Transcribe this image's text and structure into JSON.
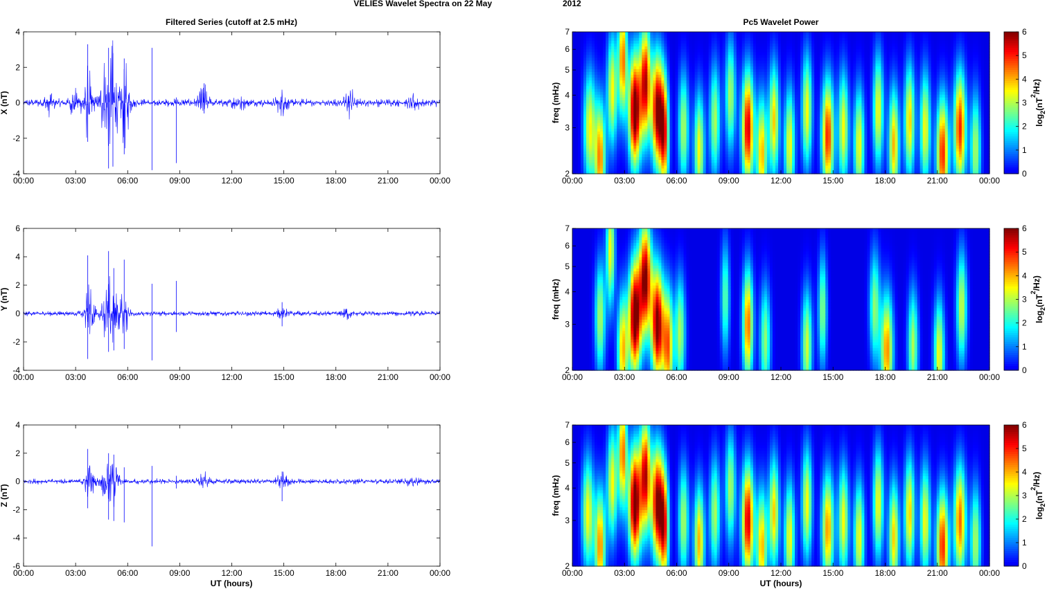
{
  "figure": {
    "title_main": "VELIES Wavelet Spectra on 22 May",
    "title_year": "2012",
    "left_title": "Filtered Series (cutoff at 2.5 mHz)",
    "right_title": "Pc5 Wavelet Power",
    "xlabel": "UT (hours)",
    "time_ticks": [
      "00:00",
      "03:00",
      "06:00",
      "09:00",
      "12:00",
      "15:00",
      "18:00",
      "21:00",
      "00:00"
    ],
    "freq_ylabel": "freq (mHz)",
    "freq_ticks": [
      "2",
      "3",
      "4",
      "5",
      "6",
      "7"
    ],
    "colorbar_label_prefix": "log",
    "colorbar_label_sub": "2",
    "colorbar_label_mid": "(nT",
    "colorbar_label_sup": "2",
    "colorbar_label_suffix": "/Hz)",
    "colorbar_ticks": [
      "0",
      "1",
      "2",
      "3",
      "4",
      "5",
      "6"
    ]
  },
  "chart_data": [
    {
      "type": "line",
      "component": "X",
      "ylabel": "X (nT)",
      "x_unit": "hours UT",
      "xlim": [
        0,
        24
      ],
      "ylim": [
        -4,
        4
      ],
      "yticks": [
        -4,
        -2,
        0,
        2,
        4
      ],
      "color": "#0000ff",
      "background_amplitude": 0.25,
      "bursts": [
        {
          "t": 1.5,
          "amp": 0.6
        },
        {
          "t": 2.9,
          "amp": 0.8
        },
        {
          "t": 3.7,
          "amp": 2.3
        },
        {
          "t": 4.7,
          "amp": 2.5
        },
        {
          "t": 5.1,
          "amp": 3.6
        },
        {
          "t": 5.8,
          "amp": 2.7
        },
        {
          "t": 10.4,
          "amp": 1.0
        },
        {
          "t": 12.4,
          "amp": 0.6
        },
        {
          "t": 14.9,
          "amp": 0.8
        },
        {
          "t": 18.8,
          "amp": 0.8
        },
        {
          "t": 22.5,
          "amp": 0.6
        }
      ],
      "spikes": [
        {
          "t": 3.7,
          "min": -2.2,
          "max": 3.3
        },
        {
          "t": 4.9,
          "min": -3.7,
          "max": 3.1
        },
        {
          "t": 5.15,
          "min": -3.6,
          "max": 2.8
        },
        {
          "t": 5.8,
          "min": -2.9,
          "max": 2.5
        },
        {
          "t": 7.4,
          "min": -3.8,
          "max": 3.1
        },
        {
          "t": 8.8,
          "min": -3.4,
          "max": 0.3
        },
        {
          "t": 10.4,
          "min": -0.6,
          "max": 1.1
        }
      ]
    },
    {
      "type": "line",
      "component": "Y",
      "ylabel": "Y (nT)",
      "x_unit": "hours UT",
      "xlim": [
        0,
        24
      ],
      "ylim": [
        -4,
        6
      ],
      "yticks": [
        -4,
        -2,
        0,
        2,
        4,
        6
      ],
      "color": "#0000ff",
      "background_amplitude": 0.2,
      "bursts": [
        {
          "t": 3.8,
          "amp": 2.2
        },
        {
          "t": 4.8,
          "amp": 2.2
        },
        {
          "t": 5.2,
          "amp": 2.3
        },
        {
          "t": 5.8,
          "amp": 1.6
        },
        {
          "t": 14.9,
          "amp": 0.4
        },
        {
          "t": 18.6,
          "amp": 0.4
        }
      ],
      "spikes": [
        {
          "t": 3.7,
          "min": -3.2,
          "max": 4.1
        },
        {
          "t": 4.9,
          "min": -2.7,
          "max": 4.4
        },
        {
          "t": 5.2,
          "min": -2.6,
          "max": 3.2
        },
        {
          "t": 5.8,
          "min": -2.5,
          "max": 3.8
        },
        {
          "t": 7.4,
          "min": -3.3,
          "max": 2.1
        },
        {
          "t": 8.8,
          "min": -1.3,
          "max": 2.3
        },
        {
          "t": 14.9,
          "min": -0.9,
          "max": 0.8
        }
      ]
    },
    {
      "type": "line",
      "component": "Z",
      "ylabel": "Z (nT)",
      "x_unit": "hours UT",
      "xlim": [
        0,
        24
      ],
      "ylim": [
        -6,
        4
      ],
      "yticks": [
        -6,
        -4,
        -2,
        0,
        2,
        4
      ],
      "color": "#0000ff",
      "background_amplitude": 0.22,
      "bursts": [
        {
          "t": 3.8,
          "amp": 1.5
        },
        {
          "t": 4.8,
          "amp": 1.6
        },
        {
          "t": 5.2,
          "amp": 1.8
        },
        {
          "t": 10.4,
          "amp": 0.6
        },
        {
          "t": 14.9,
          "amp": 0.6
        },
        {
          "t": 22.4,
          "amp": 0.4
        }
      ],
      "spikes": [
        {
          "t": 3.7,
          "min": -1.9,
          "max": 2.3
        },
        {
          "t": 4.9,
          "min": -2.7,
          "max": 2.0
        },
        {
          "t": 5.2,
          "min": -2.8,
          "max": 1.9
        },
        {
          "t": 5.8,
          "min": -2.9,
          "max": 1.0
        },
        {
          "t": 7.4,
          "min": -4.6,
          "max": 1.1
        },
        {
          "t": 8.8,
          "min": -0.5,
          "max": 0.4
        },
        {
          "t": 14.9,
          "min": -1.4,
          "max": 0.7
        }
      ]
    },
    {
      "type": "heatmap",
      "component": "X",
      "ylabel": "freq (mHz)",
      "x_unit": "hours UT",
      "xlim": [
        0,
        24
      ],
      "ylim": [
        2,
        7
      ],
      "yscale": "log",
      "zlim": [
        0,
        6
      ],
      "colormap": "jet",
      "cells_x": 150,
      "cells_y": 50,
      "blobs": [
        {
          "t": 1.0,
          "f": 3.0,
          "p": 3.5,
          "w": 0.35
        },
        {
          "t": 1.6,
          "f": 2.3,
          "p": 4.3,
          "w": 0.3
        },
        {
          "t": 2.3,
          "f": 4.2,
          "p": 3.5,
          "w": 0.3
        },
        {
          "t": 2.9,
          "f": 5.5,
          "p": 4.5,
          "w": 0.25
        },
        {
          "t": 3.6,
          "f": 3.5,
          "p": 6.5,
          "w": 0.35
        },
        {
          "t": 4.2,
          "f": 4.5,
          "p": 5.5,
          "w": 0.3
        },
        {
          "t": 4.9,
          "f": 3.5,
          "p": 6.0,
          "w": 0.35
        },
        {
          "t": 5.3,
          "f": 2.8,
          "p": 4.5,
          "w": 0.25
        },
        {
          "t": 6.4,
          "f": 3.0,
          "p": 3.0,
          "w": 0.3
        },
        {
          "t": 7.3,
          "f": 2.5,
          "p": 3.5,
          "w": 0.3
        },
        {
          "t": 8.2,
          "f": 3.2,
          "p": 3.0,
          "w": 0.3
        },
        {
          "t": 9.1,
          "f": 4.0,
          "p": 3.0,
          "w": 0.3
        },
        {
          "t": 10.1,
          "f": 3.0,
          "p": 5.5,
          "w": 0.35
        },
        {
          "t": 10.9,
          "f": 2.4,
          "p": 4.0,
          "w": 0.3
        },
        {
          "t": 11.6,
          "f": 3.2,
          "p": 3.8,
          "w": 0.3
        },
        {
          "t": 12.5,
          "f": 2.6,
          "p": 3.5,
          "w": 0.3
        },
        {
          "t": 13.5,
          "f": 3.5,
          "p": 3.5,
          "w": 0.3
        },
        {
          "t": 14.7,
          "f": 2.8,
          "p": 5.0,
          "w": 0.35
        },
        {
          "t": 15.6,
          "f": 3.0,
          "p": 3.5,
          "w": 0.3
        },
        {
          "t": 16.5,
          "f": 2.6,
          "p": 3.5,
          "w": 0.3
        },
        {
          "t": 17.6,
          "f": 3.5,
          "p": 3.5,
          "w": 0.3
        },
        {
          "t": 18.5,
          "f": 2.6,
          "p": 4.0,
          "w": 0.3
        },
        {
          "t": 19.4,
          "f": 3.2,
          "p": 3.8,
          "w": 0.3
        },
        {
          "t": 20.3,
          "f": 3.0,
          "p": 3.5,
          "w": 0.3
        },
        {
          "t": 21.3,
          "f": 2.4,
          "p": 5.0,
          "w": 0.35
        },
        {
          "t": 22.3,
          "f": 3.0,
          "p": 5.0,
          "w": 0.35
        },
        {
          "t": 23.2,
          "f": 2.5,
          "p": 3.0,
          "w": 0.3
        }
      ]
    },
    {
      "type": "heatmap",
      "component": "Y",
      "ylabel": "freq (mHz)",
      "x_unit": "hours UT",
      "xlim": [
        0,
        24
      ],
      "ylim": [
        2,
        7
      ],
      "yscale": "log",
      "zlim": [
        0,
        6
      ],
      "colormap": "jet",
      "cells_x": 150,
      "cells_y": 50,
      "blobs": [
        {
          "t": 1.6,
          "f": 3.2,
          "p": 3.0,
          "w": 0.3
        },
        {
          "t": 2.2,
          "f": 5.8,
          "p": 3.5,
          "w": 0.25
        },
        {
          "t": 2.9,
          "f": 2.4,
          "p": 4.0,
          "w": 0.3
        },
        {
          "t": 3.6,
          "f": 3.2,
          "p": 6.5,
          "w": 0.35
        },
        {
          "t": 4.2,
          "f": 4.5,
          "p": 6.0,
          "w": 0.35
        },
        {
          "t": 4.9,
          "f": 3.0,
          "p": 6.2,
          "w": 0.35
        },
        {
          "t": 5.5,
          "f": 2.5,
          "p": 4.5,
          "w": 0.3
        },
        {
          "t": 6.2,
          "f": 2.8,
          "p": 3.0,
          "w": 0.3
        },
        {
          "t": 8.8,
          "f": 3.8,
          "p": 2.5,
          "w": 0.25
        },
        {
          "t": 10.1,
          "f": 3.0,
          "p": 4.5,
          "w": 0.3
        },
        {
          "t": 11.1,
          "f": 2.6,
          "p": 2.8,
          "w": 0.3
        },
        {
          "t": 13.5,
          "f": 2.5,
          "p": 3.2,
          "w": 0.3
        },
        {
          "t": 14.4,
          "f": 3.4,
          "p": 2.8,
          "w": 0.25
        },
        {
          "t": 17.4,
          "f": 3.5,
          "p": 2.8,
          "w": 0.3
        },
        {
          "t": 18.1,
          "f": 2.4,
          "p": 4.3,
          "w": 0.35
        },
        {
          "t": 19.6,
          "f": 2.5,
          "p": 3.0,
          "w": 0.3
        },
        {
          "t": 21.1,
          "f": 2.3,
          "p": 3.5,
          "w": 0.3
        },
        {
          "t": 22.4,
          "f": 3.5,
          "p": 3.2,
          "w": 0.3
        }
      ]
    },
    {
      "type": "heatmap",
      "component": "Z",
      "ylabel": "freq (mHz)",
      "x_unit": "hours UT",
      "xlim": [
        0,
        24
      ],
      "ylim": [
        2,
        7
      ],
      "yscale": "log",
      "zlim": [
        0,
        6
      ],
      "colormap": "jet",
      "cells_x": 150,
      "cells_y": 50,
      "blobs": [
        {
          "t": 0.9,
          "f": 3.2,
          "p": 3.5,
          "w": 0.35
        },
        {
          "t": 1.6,
          "f": 2.4,
          "p": 4.3,
          "w": 0.3
        },
        {
          "t": 2.3,
          "f": 4.2,
          "p": 3.5,
          "w": 0.3
        },
        {
          "t": 2.9,
          "f": 5.5,
          "p": 4.5,
          "w": 0.25
        },
        {
          "t": 3.6,
          "f": 3.5,
          "p": 6.5,
          "w": 0.35
        },
        {
          "t": 4.2,
          "f": 4.5,
          "p": 5.5,
          "w": 0.3
        },
        {
          "t": 4.9,
          "f": 3.5,
          "p": 6.0,
          "w": 0.35
        },
        {
          "t": 5.3,
          "f": 2.8,
          "p": 4.5,
          "w": 0.25
        },
        {
          "t": 6.4,
          "f": 3.0,
          "p": 3.0,
          "w": 0.3
        },
        {
          "t": 7.3,
          "f": 2.5,
          "p": 4.0,
          "w": 0.3
        },
        {
          "t": 8.2,
          "f": 3.2,
          "p": 3.0,
          "w": 0.3
        },
        {
          "t": 9.1,
          "f": 4.0,
          "p": 3.0,
          "w": 0.3
        },
        {
          "t": 10.1,
          "f": 3.0,
          "p": 5.5,
          "w": 0.35
        },
        {
          "t": 10.9,
          "f": 2.4,
          "p": 4.0,
          "w": 0.3
        },
        {
          "t": 11.6,
          "f": 3.2,
          "p": 3.8,
          "w": 0.3
        },
        {
          "t": 12.5,
          "f": 2.6,
          "p": 3.5,
          "w": 0.3
        },
        {
          "t": 13.5,
          "f": 3.5,
          "p": 3.5,
          "w": 0.3
        },
        {
          "t": 14.7,
          "f": 2.8,
          "p": 4.2,
          "w": 0.35
        },
        {
          "t": 15.6,
          "f": 3.0,
          "p": 3.5,
          "w": 0.3
        },
        {
          "t": 16.5,
          "f": 2.6,
          "p": 3.5,
          "w": 0.3
        },
        {
          "t": 17.6,
          "f": 3.5,
          "p": 3.5,
          "w": 0.3
        },
        {
          "t": 18.5,
          "f": 2.6,
          "p": 3.8,
          "w": 0.3
        },
        {
          "t": 19.4,
          "f": 3.2,
          "p": 3.8,
          "w": 0.3
        },
        {
          "t": 20.3,
          "f": 3.0,
          "p": 3.5,
          "w": 0.3
        },
        {
          "t": 21.3,
          "f": 2.4,
          "p": 5.0,
          "w": 0.35
        },
        {
          "t": 22.3,
          "f": 3.0,
          "p": 4.5,
          "w": 0.35
        },
        {
          "t": 23.2,
          "f": 2.5,
          "p": 3.0,
          "w": 0.3
        }
      ]
    }
  ]
}
